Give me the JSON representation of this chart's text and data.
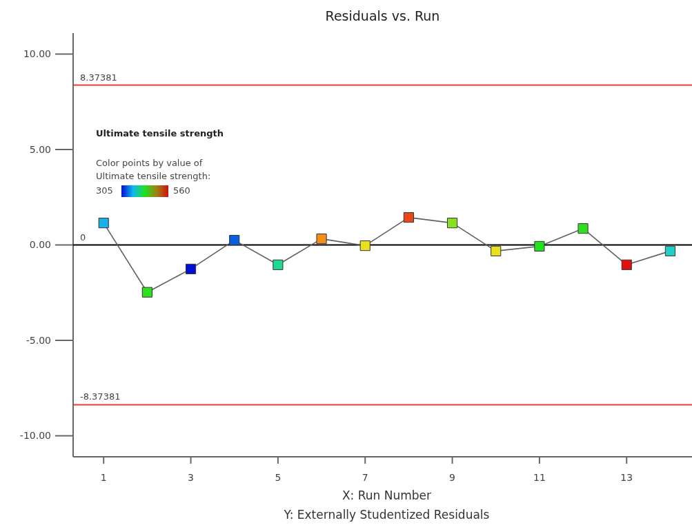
{
  "chart_data": {
    "type": "line",
    "title": "Residuals vs. Run",
    "xlabel": "X: Run Number",
    "annotations": [
      "Ultimate tensile strength",
      "Color points by value of Ultimate tensile strength:",
      "305",
      "560",
      "Y: Externally Studentized Residuals"
    ],
    "x": [
      1,
      2,
      3,
      4,
      5,
      6,
      7,
      8,
      9,
      10,
      11,
      12,
      13,
      14
    ],
    "series": [
      {
        "color": "#606060",
        "values": [
          1.15,
          -2.48,
          -1.26,
          0.25,
          -1.04,
          0.32,
          -0.04,
          1.44,
          1.15,
          -0.32,
          -0.07,
          0.86,
          -1.04,
          -0.32
        ],
        "colors": [
          "#18b0e8",
          "#30e020",
          "#0010d0",
          "#0860e0",
          "#20d890",
          "#f09018",
          "#e8e020",
          "#e84818",
          "#88e020",
          "#e8e020",
          "#20e020",
          "#30e020",
          "#e01010",
          "#20d0c8"
        ]
      }
    ],
    "xlim": [
      0.3,
      14.5
    ],
    "xticks": [
      1,
      3,
      5,
      7,
      9,
      11,
      13
    ],
    "ylim": [
      -11.1,
      11.1
    ],
    "yticks": [
      {
        "value": -10,
        "label": "-10.00"
      },
      {
        "value": -5,
        "label": "-5.00"
      },
      {
        "value": 0,
        "label": "0.00"
      },
      {
        "value": 5,
        "label": "5.00"
      },
      {
        "value": 10,
        "label": "10.00"
      }
    ],
    "ref_lines": [
      {
        "axis": "y",
        "value": 8.37381,
        "label": "8.37381",
        "color": "#e8383d"
      },
      {
        "axis": "y",
        "value": -8.37381,
        "label": "-8.37381",
        "color": "#e8383d"
      },
      {
        "axis": "y",
        "value": 0,
        "label": "0",
        "color": "#000000"
      }
    ],
    "grid": false,
    "marker": "square",
    "line_style": "solid"
  }
}
